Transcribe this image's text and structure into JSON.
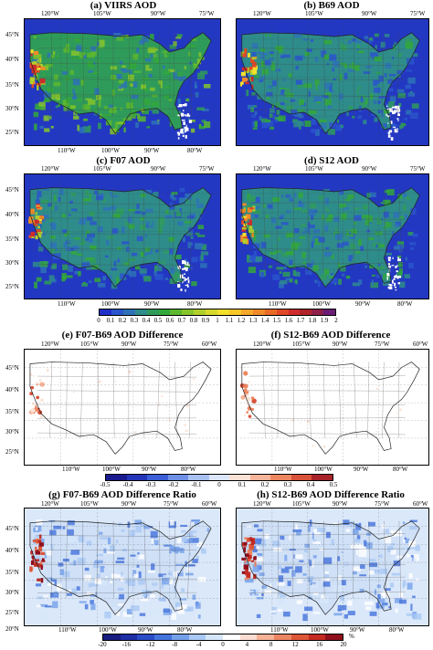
{
  "panels": {
    "a": {
      "title": "(a) VIIRS AOD"
    },
    "b": {
      "title": "(b) B69 AOD"
    },
    "c": {
      "title": "(c) F07 AOD"
    },
    "d": {
      "title": "(d) S12 AOD"
    },
    "e": {
      "title": "(e) F07-B69 AOD Difference"
    },
    "f": {
      "title": "(f) S12-B69 AOD Difference"
    },
    "g": {
      "title": "(g) F07-B69 AOD Difference Ratio"
    },
    "h": {
      "title": "(h) S12-B69 AOD Difference Ratio"
    }
  },
  "axes": {
    "top_lon_4": [
      "120°W",
      "105°W",
      "90°W",
      "75°W"
    ],
    "top_lon_5": [
      "120°W",
      "105°W",
      "90°W",
      "75°W",
      "60°W"
    ],
    "bottom_lon": [
      "110°W",
      "100°W",
      "90°W",
      "80°W"
    ],
    "lat_a": [
      "45°N",
      "40°N",
      "35°N",
      "30°N",
      "25°N"
    ],
    "lat_g": [
      "45°N",
      "40°N",
      "35°N",
      "30°N",
      "25°N",
      "20°N"
    ]
  },
  "colorbars": {
    "aod": {
      "labels": [
        "0",
        "0.1",
        "0.2",
        "0.3",
        "0.4",
        "0.5",
        "0.6",
        "0.7",
        "0.8",
        "0.9",
        "1",
        "1.1",
        "1.2",
        "1.3",
        "1.4",
        "1.5",
        "1.6",
        "1.7",
        "1.8",
        "1.9",
        "2"
      ],
      "colors": [
        "#1f2fc8",
        "#2a55cc",
        "#2d72b8",
        "#2e8c8a",
        "#2f9b5a",
        "#33a83a",
        "#5bb82e",
        "#86c42b",
        "#b0cf2b",
        "#d6d92b",
        "#f2e02c",
        "#f7c629",
        "#f5a829",
        "#f08a28",
        "#ea6a27",
        "#e04826",
        "#cf2b2b",
        "#b0232a",
        "#8e1f4a",
        "#6b1c74"
      ]
    },
    "diff": {
      "labels": [
        "-0.5",
        "-0.4",
        "-0.3",
        "-0.2",
        "-0.1",
        "0",
        "0.1",
        "0.2",
        "0.3",
        "0.4",
        "0.5"
      ],
      "colors": [
        "#1a1a8f",
        "#2336b8",
        "#3a5fd6",
        "#6e90e6",
        "#a9c1f2",
        "#dbe6fb",
        "#fbe1d3",
        "#f6b59a",
        "#ee8660",
        "#d9523a",
        "#a8222a"
      ]
    },
    "ratio": {
      "labels": [
        "-20",
        "-16",
        "-12",
        "-8",
        "-4",
        "0",
        "4",
        "8",
        "12",
        "16",
        "20"
      ],
      "unit": "%",
      "colors": [
        "#161d7e",
        "#1f2fa5",
        "#2a4cc6",
        "#4573dc",
        "#74a0ea",
        "#a9c8f4",
        "#d6e6fa",
        "#ffffff",
        "#fbdcd0",
        "#f5b297",
        "#ec8564",
        "#dd5637",
        "#c42b23",
        "#8f0f1c"
      ]
    }
  }
}
